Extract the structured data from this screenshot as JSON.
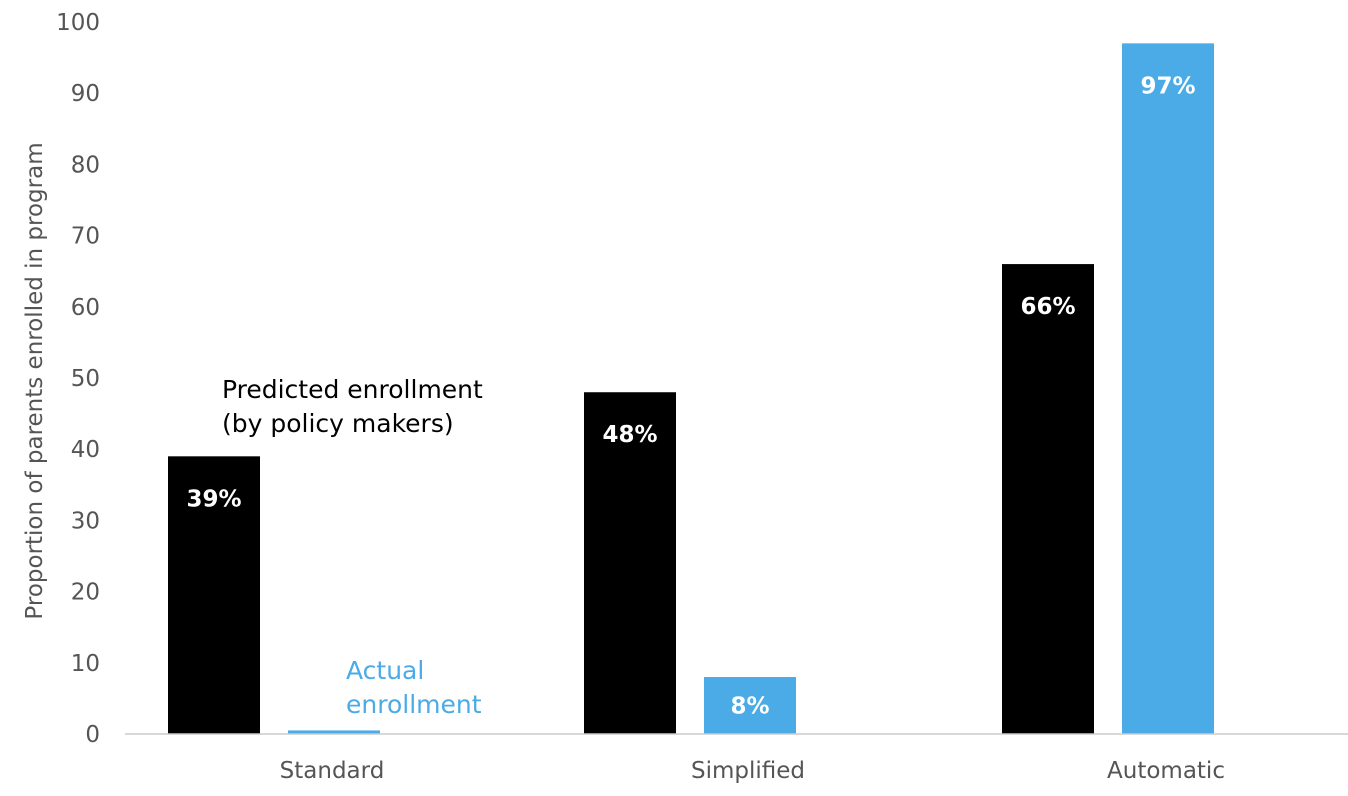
{
  "chart_data": {
    "type": "bar",
    "categories": [
      "Standard",
      "Simplified",
      "Automatic"
    ],
    "series": [
      {
        "name": "Predicted enrollment\n(by policy makers)",
        "values": [
          39,
          48,
          66
        ],
        "labels": [
          "39%",
          "48%",
          "66%"
        ]
      },
      {
        "name": "Actual\nenrollment",
        "values": [
          0.5,
          8,
          97
        ],
        "labels": [
          "",
          "8%",
          "97%"
        ]
      }
    ],
    "ylabel": "Proportion of parents enrolled in program",
    "ylim": [
      0,
      100
    ],
    "yticks": [
      "0",
      "10",
      "20",
      "30",
      "40",
      "50",
      "60",
      "70",
      "80",
      "90",
      "100"
    ],
    "grid": false,
    "colors": {
      "predicted": "#000000",
      "actual": "#4aabe6",
      "axis": "#cccccc",
      "text": "#555555"
    },
    "annotations": {
      "predicted": [
        "Predicted enrollment",
        "(by policy makers)"
      ],
      "actual": [
        "Actual",
        "enrollment"
      ]
    }
  }
}
